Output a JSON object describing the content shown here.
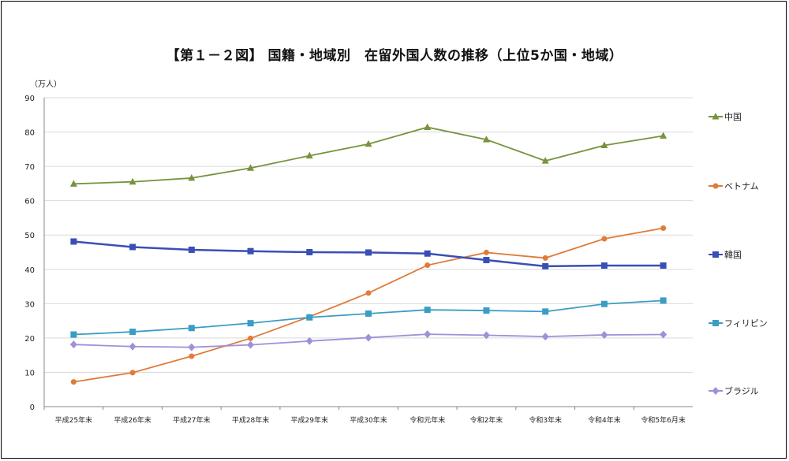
{
  "chart_data": {
    "type": "line",
    "title": "【第１－２図】 国籍・地域別　在留外国人数の推移（上位5か国・地域）",
    "ylabel": "（万人）",
    "ylim": [
      0,
      90
    ],
    "yticks": [
      0,
      10,
      20,
      30,
      40,
      50,
      60,
      70,
      80,
      90
    ],
    "grid": true,
    "legend_position": "right",
    "categories": [
      "平成25年末",
      "平成26年末",
      "平成27年末",
      "平成28年末",
      "平成29年末",
      "平成30年末",
      "令和元年末",
      "令和2年末",
      "令和3年末",
      "令和4年末",
      "令和5年6月末"
    ],
    "series": [
      {
        "name": "中国",
        "color": "#77933c",
        "marker": "triangle",
        "values": [
          64.9,
          65.5,
          66.6,
          69.5,
          73.1,
          76.5,
          81.4,
          77.8,
          71.6,
          76.1,
          78.9
        ]
      },
      {
        "name": "ベトナム",
        "color": "#e07b39",
        "marker": "circle",
        "values": [
          7.2,
          9.9,
          14.7,
          19.9,
          26.2,
          33.1,
          41.2,
          44.9,
          43.3,
          48.9,
          52.0
        ]
      },
      {
        "name": "韓国",
        "color": "#3a4fb5",
        "marker": "square",
        "values": [
          48.1,
          46.5,
          45.7,
          45.3,
          45.0,
          44.9,
          44.6,
          42.7,
          40.9,
          41.1,
          41.1
        ]
      },
      {
        "name": "フィリピン",
        "color": "#3b9dc4",
        "marker": "square",
        "values": [
          21.0,
          21.8,
          22.9,
          24.3,
          26.0,
          27.1,
          28.2,
          28.0,
          27.7,
          29.9,
          30.9
        ]
      },
      {
        "name": "ブラジル",
        "color": "#a090d8",
        "marker": "diamond",
        "values": [
          18.1,
          17.5,
          17.3,
          18.0,
          19.1,
          20.1,
          21.1,
          20.8,
          20.4,
          20.9,
          21.0
        ]
      }
    ]
  }
}
